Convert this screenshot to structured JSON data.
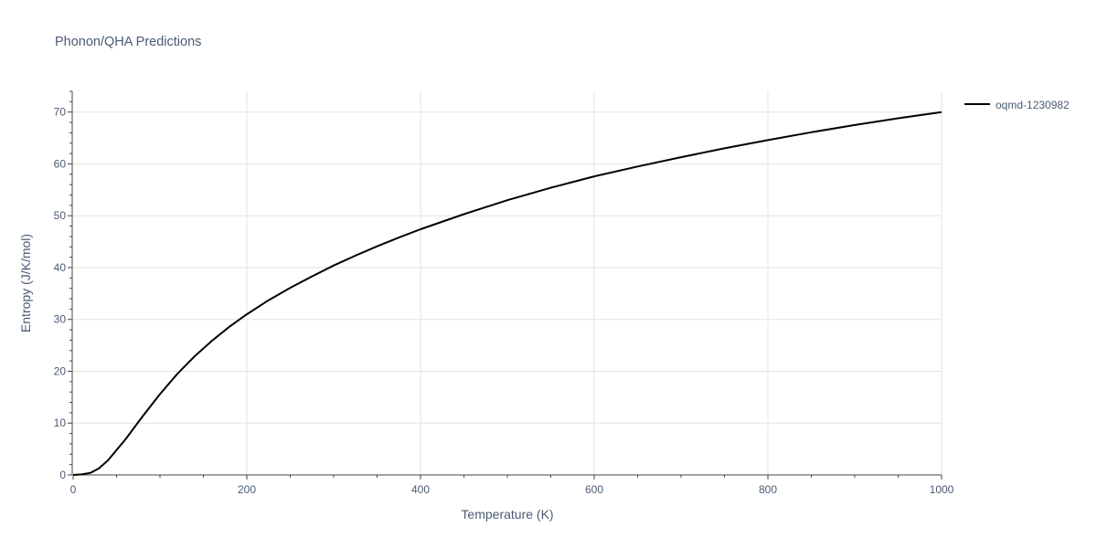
{
  "chart_data": {
    "type": "line",
    "title": "Phonon/QHA Predictions",
    "xlabel": "Temperature (K)",
    "ylabel": "Entropy (J/K/mol)",
    "xlim": [
      0,
      1000
    ],
    "ylim": [
      0,
      74
    ],
    "x_ticks": [
      0,
      200,
      400,
      600,
      800,
      1000
    ],
    "y_ticks": [
      0,
      10,
      20,
      30,
      40,
      50,
      60,
      70
    ],
    "grid": true,
    "legend_position": "top-right",
    "series": [
      {
        "name": "oqmd-1230982",
        "color": "#000000",
        "x": [
          0,
          10,
          20,
          30,
          40,
          60,
          80,
          100,
          120,
          140,
          160,
          180,
          200,
          225,
          250,
          275,
          300,
          325,
          350,
          375,
          400,
          450,
          500,
          550,
          600,
          650,
          700,
          750,
          800,
          850,
          900,
          950,
          1000
        ],
        "y": [
          0,
          0.1,
          0.4,
          1.3,
          2.8,
          6.8,
          11.3,
          15.6,
          19.5,
          22.9,
          25.9,
          28.6,
          31.0,
          33.7,
          36.1,
          38.3,
          40.4,
          42.3,
          44.1,
          45.8,
          47.4,
          50.3,
          53.0,
          55.4,
          57.6,
          59.5,
          61.3,
          63.0,
          64.6,
          66.1,
          67.5,
          68.8,
          70.0
        ]
      }
    ]
  }
}
